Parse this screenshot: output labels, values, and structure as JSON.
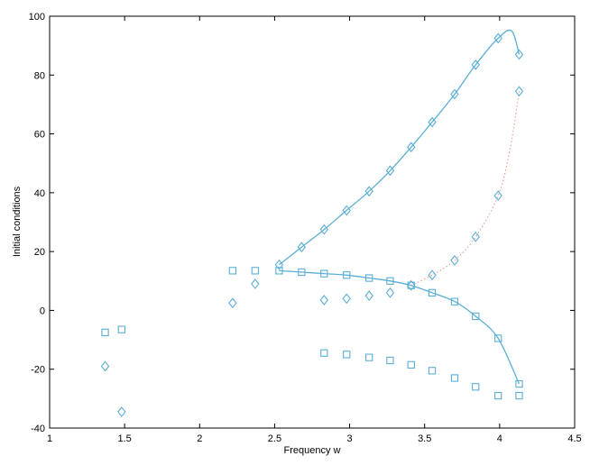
{
  "chart_data": {
    "type": "scatter",
    "title": "",
    "xlabel": "Frequency w",
    "ylabel": "Initial conditions",
    "xlim": [
      1,
      4.5
    ],
    "ylim": [
      -40,
      100
    ],
    "xticks": [
      1,
      1.5,
      2,
      2.5,
      3,
      3.5,
      4,
      4.5
    ],
    "xtick_labels": [
      "1",
      "1.5",
      "2",
      "2.5",
      "3",
      "3.5",
      "4",
      "4.5"
    ],
    "yticks": [
      -40,
      -20,
      0,
      20,
      40,
      60,
      80,
      100
    ],
    "ytick_labels": [
      "-40",
      "-20",
      "0",
      "20",
      "40",
      "60",
      "80",
      "100"
    ],
    "grid": false,
    "legend": "none",
    "colors": {
      "series": "#5aaed6",
      "dotted": "#e8a0a0",
      "axes": "#000000"
    },
    "series": [
      {
        "marker": "diamond",
        "points": [
          [
            1.37,
            -19
          ],
          [
            1.48,
            -34.5
          ],
          [
            2.22,
            2.5
          ],
          [
            2.37,
            9
          ],
          [
            2.53,
            15.5
          ],
          [
            2.68,
            21.5
          ],
          [
            2.83,
            27.5
          ],
          [
            2.98,
            34
          ],
          [
            3.13,
            40.5
          ],
          [
            3.27,
            47.5
          ],
          [
            3.41,
            55.5
          ],
          [
            3.55,
            64
          ],
          [
            3.7,
            73.5
          ],
          [
            3.84,
            83.5
          ],
          [
            3.99,
            92.5
          ],
          [
            4.13,
            87
          ],
          [
            2.83,
            3.5
          ],
          [
            2.98,
            4
          ],
          [
            3.13,
            5
          ],
          [
            3.27,
            6
          ],
          [
            3.41,
            8.5
          ],
          [
            3.55,
            12
          ],
          [
            3.7,
            17
          ],
          [
            3.84,
            25
          ],
          [
            3.99,
            39
          ],
          [
            4.13,
            74.5
          ]
        ]
      },
      {
        "marker": "square",
        "points": [
          [
            1.37,
            -7.5
          ],
          [
            1.48,
            -6.5
          ],
          [
            2.22,
            13.5
          ],
          [
            2.37,
            13.5
          ],
          [
            2.53,
            13.5
          ],
          [
            2.68,
            13
          ],
          [
            2.83,
            12.5
          ],
          [
            2.98,
            12
          ],
          [
            3.13,
            11
          ],
          [
            3.27,
            10
          ],
          [
            3.41,
            8.5
          ],
          [
            3.55,
            6
          ],
          [
            3.7,
            3
          ],
          [
            3.84,
            -2
          ],
          [
            3.99,
            -9.5
          ],
          [
            4.13,
            -25
          ],
          [
            2.83,
            -14.5
          ],
          [
            2.98,
            -15
          ],
          [
            3.13,
            -16
          ],
          [
            3.27,
            -17
          ],
          [
            3.41,
            -18.5
          ],
          [
            3.55,
            -20.5
          ],
          [
            3.7,
            -23
          ],
          [
            3.84,
            -26
          ],
          [
            3.99,
            -29
          ],
          [
            4.13,
            -29
          ]
        ]
      }
    ],
    "curves": [
      {
        "style": "solid",
        "points": [
          [
            2.53,
            15.5
          ],
          [
            2.68,
            21.5
          ],
          [
            2.83,
            27.5
          ],
          [
            2.98,
            34
          ],
          [
            3.13,
            40.5
          ],
          [
            3.27,
            47.5
          ],
          [
            3.41,
            55.5
          ],
          [
            3.55,
            64
          ],
          [
            3.7,
            73.5
          ],
          [
            3.84,
            83.5
          ],
          [
            3.99,
            92.5
          ],
          [
            4.08,
            95
          ],
          [
            4.13,
            87
          ]
        ]
      },
      {
        "style": "solid",
        "points": [
          [
            2.53,
            13.5
          ],
          [
            2.68,
            13
          ],
          [
            2.83,
            12.5
          ],
          [
            2.98,
            12
          ],
          [
            3.13,
            11
          ],
          [
            3.27,
            10
          ],
          [
            3.41,
            8.5
          ],
          [
            3.55,
            6
          ],
          [
            3.7,
            3
          ],
          [
            3.84,
            -2
          ],
          [
            3.99,
            -9.5
          ],
          [
            4.13,
            -25
          ]
        ]
      },
      {
        "style": "dotted",
        "points": [
          [
            3.41,
            8.5
          ],
          [
            3.55,
            12
          ],
          [
            3.7,
            17
          ],
          [
            3.84,
            25
          ],
          [
            3.99,
            39
          ],
          [
            4.07,
            55
          ],
          [
            4.13,
            74.5
          ]
        ]
      }
    ]
  }
}
